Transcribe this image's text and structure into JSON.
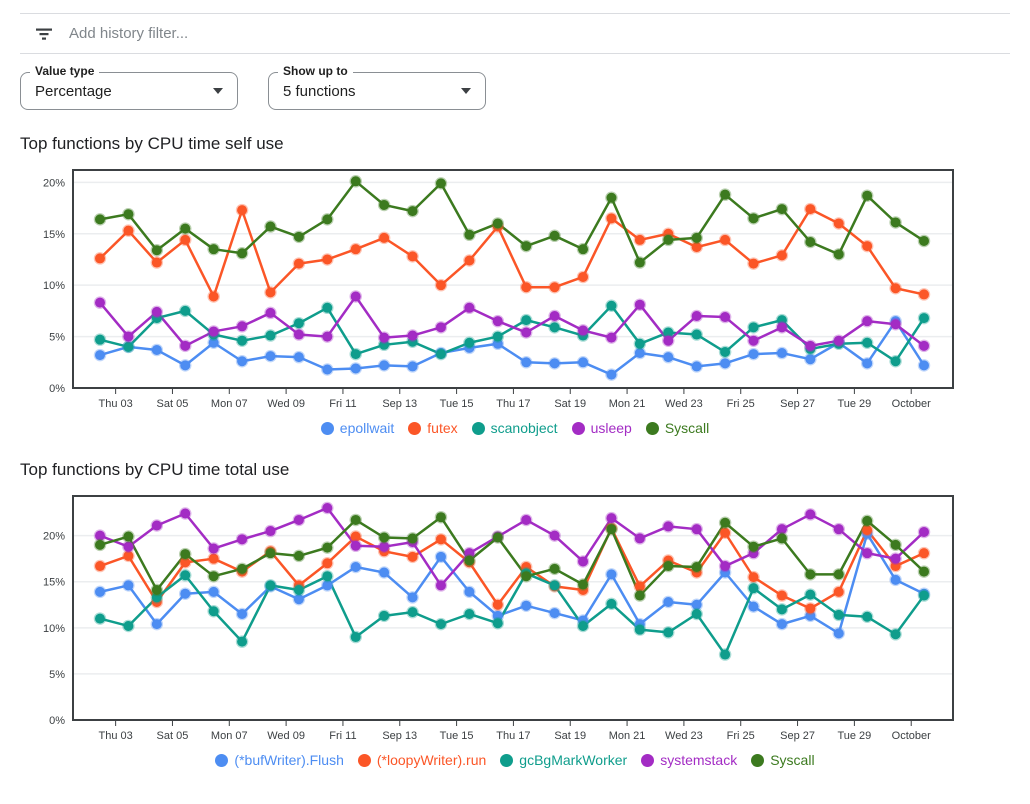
{
  "filter_bar": {
    "icon": "filter-list-icon",
    "placeholder": "Add history filter..."
  },
  "controls": {
    "value_type": {
      "label": "Value type",
      "value": "Percentage"
    },
    "show_up_to": {
      "label": "Show up to",
      "value": "5 functions"
    }
  },
  "chart_data": [
    {
      "type": "line",
      "title": "Top functions by CPU time self use",
      "xlabel": "",
      "ylabel": "",
      "ylim": [
        0,
        21.2
      ],
      "grid": "horizontal",
      "legend_position": "bottom",
      "y_ticks": [
        0,
        5,
        10,
        15,
        20
      ],
      "y_tick_labels": [
        "0%",
        "5%",
        "10%",
        "15%",
        "20%"
      ],
      "x_labels": [
        "Thu 03",
        "Sat 05",
        "Mon 07",
        "Wed 09",
        "Fri 11",
        "Sep 13",
        "Tue 15",
        "Thu 17",
        "Sat 19",
        "Mon 21",
        "Wed 23",
        "Fri 25",
        "Sep 27",
        "Tue 29",
        "October"
      ],
      "series": [
        {
          "name": "epollwait",
          "color": "#4D8DF2",
          "values": [
            3.2,
            4.0,
            3.7,
            2.2,
            4.4,
            2.6,
            3.1,
            3.0,
            1.8,
            1.9,
            2.2,
            2.1,
            3.4,
            3.9,
            4.3,
            2.5,
            2.4,
            2.5,
            1.3,
            3.4,
            3.0,
            2.1,
            2.4,
            3.3,
            3.4,
            2.8,
            4.4,
            2.4,
            6.5,
            2.2
          ]
        },
        {
          "name": "futex",
          "color": "#FB5627",
          "values": [
            12.6,
            15.3,
            12.2,
            14.4,
            8.9,
            17.3,
            9.3,
            12.1,
            12.5,
            13.5,
            14.6,
            12.8,
            10.0,
            12.4,
            15.7,
            9.8,
            9.8,
            10.8,
            16.5,
            14.4,
            15.0,
            13.7,
            14.4,
            12.1,
            12.9,
            17.4,
            16.0,
            13.8,
            9.7,
            9.1
          ]
        },
        {
          "name": "scanobject",
          "color": "#0F9D8C",
          "values": [
            4.7,
            4.0,
            6.8,
            7.5,
            5.2,
            4.6,
            5.1,
            6.3,
            7.8,
            3.3,
            4.2,
            4.5,
            3.3,
            4.4,
            5.0,
            6.6,
            5.9,
            5.1,
            8.0,
            4.3,
            5.4,
            5.2,
            3.5,
            5.9,
            6.6,
            3.8,
            4.3,
            4.4,
            2.6,
            6.8
          ]
        },
        {
          "name": "usleep",
          "color": "#A32CC4",
          "values": [
            8.3,
            5.0,
            7.4,
            4.1,
            5.5,
            6.0,
            7.3,
            5.2,
            5.0,
            8.9,
            4.9,
            5.1,
            5.9,
            7.8,
            6.5,
            5.4,
            7.0,
            5.6,
            4.9,
            8.1,
            4.6,
            7.0,
            6.9,
            4.6,
            5.9,
            4.1,
            4.6,
            6.5,
            6.2,
            4.1
          ]
        },
        {
          "name": "Syscall",
          "color": "#3C7A1F",
          "values": [
            16.4,
            16.9,
            13.4,
            15.5,
            13.5,
            13.1,
            15.7,
            14.7,
            16.4,
            20.1,
            17.8,
            17.2,
            19.9,
            14.9,
            16.0,
            13.8,
            14.8,
            13.5,
            18.5,
            12.2,
            14.4,
            14.6,
            18.8,
            16.5,
            17.4,
            14.2,
            13.0,
            18.7,
            16.1,
            14.3
          ]
        }
      ]
    },
    {
      "type": "line",
      "title": "Top functions by CPU time total use",
      "xlabel": "",
      "ylabel": "",
      "ylim": [
        0,
        24.3
      ],
      "grid": "horizontal",
      "legend_position": "bottom",
      "y_ticks": [
        0,
        5,
        10,
        15,
        20
      ],
      "y_tick_labels": [
        "0%",
        "5%",
        "10%",
        "15%",
        "20%"
      ],
      "x_labels": [
        "Thu 03",
        "Sat 05",
        "Mon 07",
        "Wed 09",
        "Fri 11",
        "Sep 13",
        "Tue 15",
        "Thu 17",
        "Sat 19",
        "Mon 21",
        "Wed 23",
        "Fri 25",
        "Sep 27",
        "Tue 29",
        "October"
      ],
      "series": [
        {
          "name": "(*bufWriter).Flush",
          "color": "#4D8DF2",
          "values": [
            13.9,
            14.6,
            10.4,
            13.7,
            13.9,
            11.5,
            14.5,
            13.1,
            14.6,
            16.6,
            16.0,
            13.3,
            17.7,
            13.9,
            11.3,
            12.4,
            11.6,
            10.8,
            15.8,
            10.4,
            12.8,
            12.5,
            16.0,
            12.3,
            10.4,
            11.3,
            9.4,
            20.2,
            15.2,
            13.7
          ]
        },
        {
          "name": "(*loopyWriter).run",
          "color": "#FB5627",
          "values": [
            16.7,
            17.8,
            12.8,
            17.1,
            17.5,
            16.1,
            18.3,
            14.6,
            17.0,
            19.9,
            18.3,
            17.7,
            19.6,
            17.1,
            12.5,
            16.6,
            14.5,
            14.1,
            20.8,
            14.5,
            17.3,
            16.0,
            20.3,
            15.5,
            13.5,
            12.1,
            13.9,
            20.6,
            16.7,
            18.1
          ]
        },
        {
          "name": "gcBgMarkWorker",
          "color": "#0F9D8C",
          "values": [
            11.0,
            10.2,
            13.3,
            15.7,
            11.8,
            8.5,
            14.6,
            14.1,
            15.6,
            9.0,
            11.3,
            11.7,
            10.4,
            11.5,
            10.5,
            15.9,
            14.6,
            10.2,
            12.6,
            9.8,
            9.5,
            11.5,
            7.1,
            14.3,
            12.0,
            13.6,
            11.4,
            11.2,
            9.3,
            13.5
          ]
        },
        {
          "name": "systemstack",
          "color": "#A32CC4",
          "values": [
            20.0,
            18.8,
            21.1,
            22.4,
            18.6,
            19.6,
            20.5,
            21.7,
            23.0,
            18.9,
            18.8,
            19.3,
            14.6,
            18.1,
            19.9,
            21.7,
            20.0,
            17.2,
            21.9,
            19.7,
            21.0,
            20.7,
            16.7,
            18.1,
            20.7,
            22.3,
            20.7,
            18.1,
            17.5,
            20.4
          ]
        },
        {
          "name": "Syscall",
          "color": "#3C7A1F",
          "values": [
            19.0,
            19.9,
            14.1,
            18.0,
            15.6,
            16.4,
            18.1,
            17.8,
            18.7,
            21.7,
            19.8,
            19.7,
            22.0,
            17.3,
            19.8,
            15.6,
            16.4,
            14.7,
            20.7,
            13.5,
            16.7,
            16.6,
            21.4,
            18.8,
            19.7,
            15.8,
            15.8,
            21.6,
            19.0,
            16.1
          ]
        }
      ]
    }
  ]
}
